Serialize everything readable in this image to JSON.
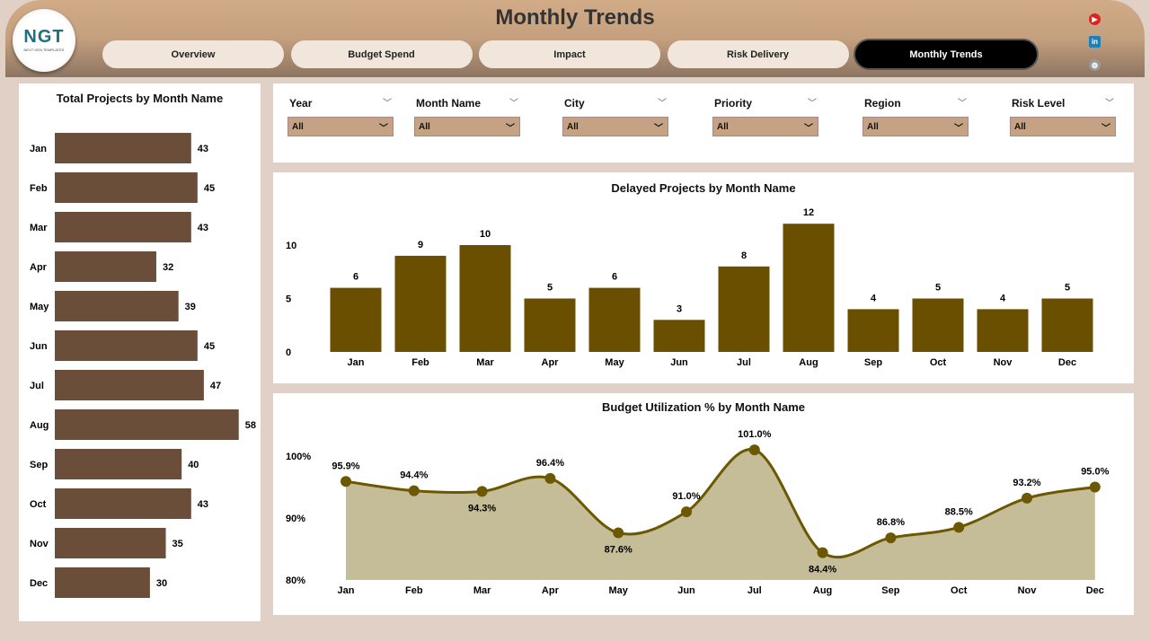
{
  "header": {
    "title": "Monthly Trends",
    "logo_text": "NGT",
    "logo_sub": "NEXT GEN TEMPLATES",
    "tabs": [
      {
        "label": "Overview",
        "active": false
      },
      {
        "label": "Budget Spend",
        "active": false
      },
      {
        "label": "Impact",
        "active": false
      },
      {
        "label": "Risk Delivery",
        "active": false
      },
      {
        "label": "Monthly Trends",
        "active": true
      }
    ],
    "social_icons": [
      "youtube-icon",
      "linkedin-icon",
      "globe-icon"
    ]
  },
  "filters": [
    {
      "label": "Year",
      "value": "All"
    },
    {
      "label": "Month Name",
      "value": "All"
    },
    {
      "label": "City",
      "value": "All"
    },
    {
      "label": "Priority",
      "value": "All"
    },
    {
      "label": "Region",
      "value": "All"
    },
    {
      "label": "Risk Level",
      "value": "All"
    }
  ],
  "colors": {
    "bar_brown": "#6b4e3a",
    "bar_olive": "#6b4f00",
    "line": "#6b5800",
    "area": "#c5bc98"
  },
  "chart_data": [
    {
      "type": "bar",
      "orientation": "horizontal",
      "title": "Total Projects by Month Name",
      "categories": [
        "Jan",
        "Feb",
        "Mar",
        "Apr",
        "May",
        "Jun",
        "Jul",
        "Aug",
        "Sep",
        "Oct",
        "Nov",
        "Dec"
      ],
      "values": [
        43,
        45,
        43,
        32,
        39,
        45,
        47,
        58,
        40,
        43,
        35,
        30
      ]
    },
    {
      "type": "bar",
      "title": "Delayed Projects by Month Name",
      "categories": [
        "Jan",
        "Feb",
        "Mar",
        "Apr",
        "May",
        "Jun",
        "Jul",
        "Aug",
        "Sep",
        "Oct",
        "Nov",
        "Dec"
      ],
      "values": [
        6,
        9,
        10,
        5,
        6,
        3,
        8,
        12,
        4,
        5,
        4,
        5
      ],
      "yticks": [
        "0",
        "5",
        "10"
      ],
      "ylim": [
        0,
        12
      ]
    },
    {
      "type": "area",
      "title": "Budget Utilization % by Month Name",
      "categories": [
        "Jan",
        "Feb",
        "Mar",
        "Apr",
        "May",
        "Jun",
        "Jul",
        "Aug",
        "Sep",
        "Oct",
        "Nov",
        "Dec"
      ],
      "values": [
        95.9,
        94.4,
        94.3,
        96.4,
        87.6,
        91.0,
        101.0,
        84.4,
        86.8,
        88.5,
        93.2,
        95.0
      ],
      "labels": [
        "95.9%",
        "94.4%",
        "94.3%",
        "96.4%",
        "87.6%",
        "91.0%",
        "101.0%",
        "84.4%",
        "86.8%",
        "88.5%",
        "93.2%",
        "95.0%"
      ],
      "yticks": [
        "80%",
        "90%",
        "100%"
      ],
      "ylim": [
        80,
        101
      ]
    }
  ]
}
